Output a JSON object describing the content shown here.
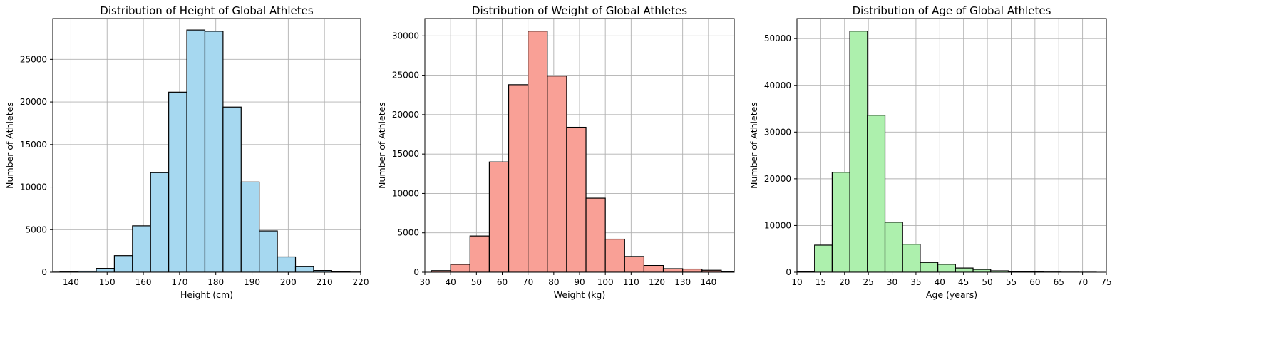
{
  "chart_data": [
    {
      "type": "bar",
      "title": "Distribution of Height of Global Athletes",
      "xlabel": "Height (cm)",
      "ylabel": "Number of Athletes",
      "xlim": [
        135,
        220
      ],
      "ylim": [
        0,
        29800
      ],
      "xticks": [
        140,
        150,
        160,
        170,
        180,
        190,
        200,
        210,
        220
      ],
      "yticks": [
        0,
        5000,
        10000,
        15000,
        20000,
        25000
      ],
      "bin_edges": [
        127,
        132,
        137,
        142,
        147,
        152,
        157,
        162,
        167,
        172,
        177,
        182,
        187,
        192,
        197,
        202,
        207,
        212,
        217,
        222,
        227
      ],
      "values": [
        5,
        10,
        30,
        120,
        450,
        1950,
        5450,
        11700,
        21150,
        28450,
        28300,
        19400,
        10600,
        4850,
        1800,
        650,
        200,
        60,
        20,
        5
      ],
      "color": "#a6d8f0",
      "grid": true
    },
    {
      "type": "bar",
      "title": "Distribution of Weight of Global Athletes",
      "xlabel": "Weight (kg)",
      "ylabel": "Number of Athletes",
      "xlim": [
        30,
        150
      ],
      "ylim": [
        0,
        32200
      ],
      "xticks": [
        30,
        40,
        50,
        60,
        70,
        80,
        90,
        100,
        110,
        120,
        130,
        140
      ],
      "yticks": [
        0,
        5000,
        10000,
        15000,
        20000,
        25000,
        30000
      ],
      "bin_edges": [
        25,
        32.5,
        40,
        47.5,
        55,
        62.5,
        70,
        77.5,
        85,
        92.5,
        100,
        107.5,
        115,
        122.5,
        130,
        137.5,
        145,
        152.5,
        160,
        167.5,
        175,
        182.5,
        190,
        197.5,
        205,
        212.5,
        220
      ],
      "values": [
        0,
        200,
        1000,
        4600,
        14000,
        23800,
        30600,
        24900,
        18400,
        9400,
        4200,
        2000,
        850,
        450,
        400,
        250,
        60,
        20,
        0,
        0,
        0,
        0,
        0,
        0,
        0,
        0
      ],
      "color": "#f9a096",
      "grid": true
    },
    {
      "type": "bar",
      "title": "Distribution of Age of Global Athletes",
      "xlabel": "Age (years)",
      "ylabel": "Number of Athletes",
      "xlim": [
        10,
        75
      ],
      "ylim": [
        0,
        54300
      ],
      "xticks": [
        10,
        15,
        20,
        25,
        30,
        35,
        40,
        45,
        50,
        55,
        60,
        65,
        70,
        75
      ],
      "yticks": [
        0,
        10000,
        20000,
        30000,
        40000,
        50000
      ],
      "bin_edges": [
        10,
        13.7,
        17.4,
        21.1,
        24.8,
        28.5,
        32.2,
        35.9,
        39.6,
        43.3,
        47,
        50.7,
        54.4,
        58.1,
        61.8,
        65.5,
        69.2,
        72.9
      ],
      "values": [
        150,
        5800,
        21400,
        51600,
        33600,
        10700,
        6000,
        2100,
        1700,
        900,
        600,
        300,
        150,
        80,
        40,
        20,
        10
      ],
      "color": "#adf0ad",
      "grid": true
    }
  ]
}
